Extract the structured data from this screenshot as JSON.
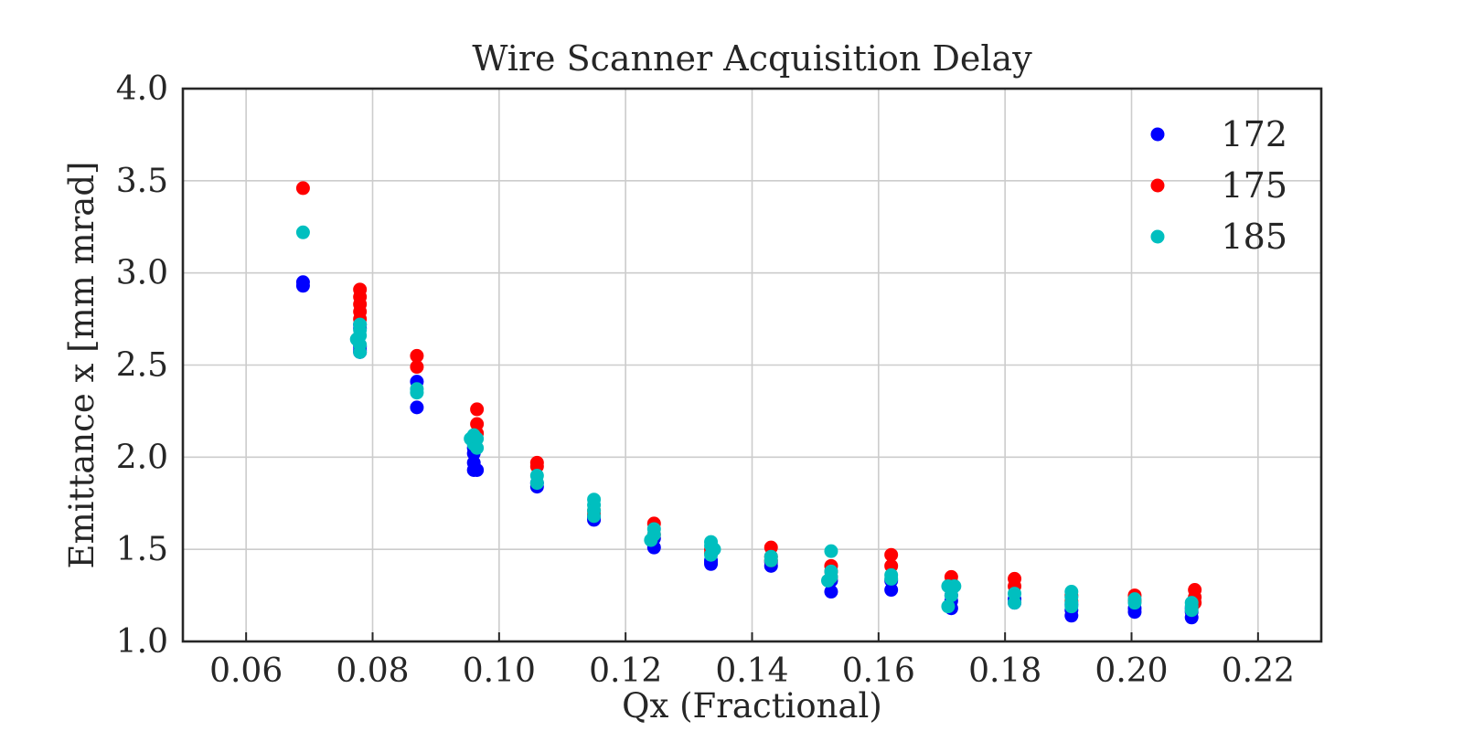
{
  "chart_data": {
    "type": "scatter",
    "title": "Wire Scanner Acquisition Delay",
    "xlabel": "Qx (Fractional)",
    "ylabel": "Emittance x [mm mrad]",
    "xlim": [
      0.05,
      0.23
    ],
    "ylim": [
      1.0,
      4.0
    ],
    "xticks": [
      "0.06",
      "0.08",
      "0.10",
      "0.12",
      "0.14",
      "0.16",
      "0.18",
      "0.20",
      "0.22"
    ],
    "yticks": [
      "1.0",
      "1.5",
      "2.0",
      "2.5",
      "3.0",
      "3.5",
      "4.0"
    ],
    "grid": true,
    "legend_position": "top-right",
    "series": [
      {
        "name": "172",
        "color": "#0000ff",
        "points": [
          [
            0.069,
            2.95
          ],
          [
            0.069,
            2.93
          ],
          [
            0.078,
            2.72
          ],
          [
            0.078,
            2.7
          ],
          [
            0.078,
            2.6
          ],
          [
            0.078,
            2.57
          ],
          [
            0.078,
            2.58
          ],
          [
            0.087,
            2.41
          ],
          [
            0.087,
            2.27
          ],
          [
            0.096,
            2.05
          ],
          [
            0.096,
            2.02
          ],
          [
            0.096,
            1.97
          ],
          [
            0.096,
            1.93
          ],
          [
            0.0965,
            1.93
          ],
          [
            0.106,
            1.84
          ],
          [
            0.106,
            1.86
          ],
          [
            0.115,
            1.66
          ],
          [
            0.115,
            1.67
          ],
          [
            0.115,
            1.68
          ],
          [
            0.1245,
            1.51
          ],
          [
            0.1245,
            1.56
          ],
          [
            0.1335,
            1.42
          ],
          [
            0.1335,
            1.44
          ],
          [
            0.1335,
            1.43
          ],
          [
            0.143,
            1.41
          ],
          [
            0.143,
            1.43
          ],
          [
            0.1525,
            1.27
          ],
          [
            0.1525,
            1.33
          ],
          [
            0.162,
            1.28
          ],
          [
            0.162,
            1.33
          ],
          [
            0.1715,
            1.18
          ],
          [
            0.1715,
            1.22
          ],
          [
            0.1715,
            1.25
          ],
          [
            0.1815,
            1.21
          ],
          [
            0.1815,
            1.23
          ],
          [
            0.1905,
            1.14
          ],
          [
            0.1905,
            1.17
          ],
          [
            0.1905,
            1.2
          ],
          [
            0.2005,
            1.16
          ],
          [
            0.2005,
            1.18
          ],
          [
            0.2095,
            1.13
          ],
          [
            0.2095,
            1.16
          ],
          [
            0.2095,
            1.18
          ]
        ]
      },
      {
        "name": "175",
        "color": "#ff0000",
        "points": [
          [
            0.069,
            3.46
          ],
          [
            0.078,
            2.91
          ],
          [
            0.078,
            2.87
          ],
          [
            0.078,
            2.83
          ],
          [
            0.078,
            2.79
          ],
          [
            0.078,
            2.75
          ],
          [
            0.087,
            2.55
          ],
          [
            0.087,
            2.49
          ],
          [
            0.0965,
            2.26
          ],
          [
            0.0965,
            2.18
          ],
          [
            0.0965,
            2.13
          ],
          [
            0.106,
            1.97
          ],
          [
            0.106,
            1.95
          ],
          [
            0.115,
            1.71
          ],
          [
            0.115,
            1.69
          ],
          [
            0.1245,
            1.64
          ],
          [
            0.1245,
            1.58
          ],
          [
            0.1335,
            1.5
          ],
          [
            0.1335,
            1.48
          ],
          [
            0.143,
            1.51
          ],
          [
            0.143,
            1.46
          ],
          [
            0.143,
            1.44
          ],
          [
            0.1525,
            1.41
          ],
          [
            0.1525,
            1.38
          ],
          [
            0.1525,
            1.35
          ],
          [
            0.162,
            1.47
          ],
          [
            0.162,
            1.41
          ],
          [
            0.1715,
            1.35
          ],
          [
            0.1715,
            1.32
          ],
          [
            0.1815,
            1.34
          ],
          [
            0.1815,
            1.3
          ],
          [
            0.1905,
            1.25
          ],
          [
            0.1905,
            1.22
          ],
          [
            0.2005,
            1.25
          ],
          [
            0.2005,
            1.22
          ],
          [
            0.21,
            1.28
          ],
          [
            0.21,
            1.24
          ],
          [
            0.21,
            1.21
          ]
        ]
      },
      {
        "name": "185",
        "color": "#00bfbf",
        "points": [
          [
            0.069,
            3.22
          ],
          [
            0.078,
            2.72
          ],
          [
            0.078,
            2.69
          ],
          [
            0.078,
            2.66
          ],
          [
            0.0775,
            2.64
          ],
          [
            0.078,
            2.61
          ],
          [
            0.078,
            2.57
          ],
          [
            0.087,
            2.37
          ],
          [
            0.087,
            2.35
          ],
          [
            0.0955,
            2.1
          ],
          [
            0.096,
            2.12
          ],
          [
            0.0965,
            2.1
          ],
          [
            0.096,
            2.07
          ],
          [
            0.0965,
            2.05
          ],
          [
            0.106,
            1.9
          ],
          [
            0.106,
            1.86
          ],
          [
            0.115,
            1.77
          ],
          [
            0.115,
            1.74
          ],
          [
            0.115,
            1.71
          ],
          [
            0.115,
            1.68
          ],
          [
            0.1245,
            1.61
          ],
          [
            0.1245,
            1.58
          ],
          [
            0.124,
            1.55
          ],
          [
            0.1335,
            1.54
          ],
          [
            0.1335,
            1.52
          ],
          [
            0.134,
            1.5
          ],
          [
            0.1335,
            1.47
          ],
          [
            0.143,
            1.46
          ],
          [
            0.143,
            1.44
          ],
          [
            0.1525,
            1.49
          ],
          [
            0.1525,
            1.38
          ],
          [
            0.1525,
            1.35
          ],
          [
            0.152,
            1.33
          ],
          [
            0.162,
            1.36
          ],
          [
            0.162,
            1.34
          ],
          [
            0.171,
            1.3
          ],
          [
            0.1715,
            1.28
          ],
          [
            0.172,
            1.3
          ],
          [
            0.1715,
            1.25
          ],
          [
            0.171,
            1.19
          ],
          [
            0.1815,
            1.26
          ],
          [
            0.1815,
            1.21
          ],
          [
            0.1905,
            1.27
          ],
          [
            0.1905,
            1.24
          ],
          [
            0.1905,
            1.21
          ],
          [
            0.1905,
            1.19
          ],
          [
            0.2005,
            1.23
          ],
          [
            0.2005,
            1.21
          ],
          [
            0.2095,
            1.21
          ],
          [
            0.2095,
            1.19
          ],
          [
            0.2095,
            1.17
          ]
        ]
      }
    ]
  }
}
